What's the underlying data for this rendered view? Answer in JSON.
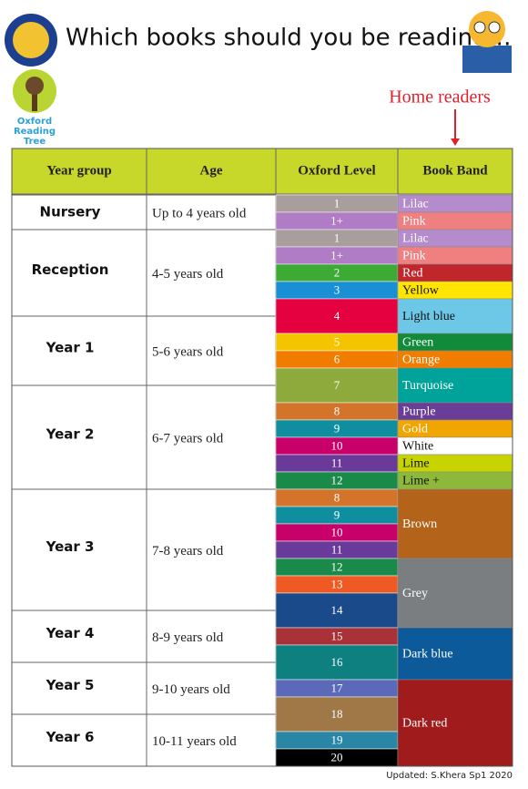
{
  "header": {
    "title": "Which books should you be reading…",
    "subtitle": "Home readers",
    "logo_text": [
      "Oxford",
      "Reading",
      "Tree"
    ]
  },
  "table": {
    "columns": [
      "Year group",
      "Age",
      "Oxford Level",
      "Book Band"
    ],
    "rows": [
      {
        "year": "Nursery",
        "age": "Up to 4 years old"
      },
      {
        "year": "Reception",
        "age": "4-5 years old"
      },
      {
        "year": "Year 1",
        "age": "5-6 years old"
      },
      {
        "year": "Year 2",
        "age": "6-7 years old"
      },
      {
        "year": "Year 3",
        "age": "7-8 years old"
      },
      {
        "year": "Year 4",
        "age": "8-9 years old"
      },
      {
        "year": "Year 5",
        "age": "9-10 years old"
      },
      {
        "year": "Year 6",
        "age": "10-11 years old"
      }
    ],
    "levels": [
      {
        "label": "1",
        "color": "#a89f9d"
      },
      {
        "label": "1+",
        "color": "#b07cc6"
      },
      {
        "label": "1",
        "color": "#a89f9d"
      },
      {
        "label": "1+",
        "color": "#b07cc6"
      },
      {
        "label": "2",
        "color": "#3daa35"
      },
      {
        "label": "3",
        "color": "#1a8fd6"
      },
      {
        "label": "4",
        "color": "#e5003f"
      },
      {
        "label": "5",
        "color": "#f5c400"
      },
      {
        "label": "6",
        "color": "#f07d00"
      },
      {
        "label": "7",
        "color": "#8faa3c"
      },
      {
        "label": "8",
        "color": "#d3742a"
      },
      {
        "label": "9",
        "color": "#0f8ea0"
      },
      {
        "label": "10",
        "color": "#c8006a"
      },
      {
        "label": "11",
        "color": "#6a3a9a"
      },
      {
        "label": "12",
        "color": "#1a8a4a"
      },
      {
        "label": "8",
        "color": "#d3742a"
      },
      {
        "label": "9",
        "color": "#0f8ea0"
      },
      {
        "label": "10",
        "color": "#c8006a"
      },
      {
        "label": "11",
        "color": "#6a3a9a"
      },
      {
        "label": "12",
        "color": "#1a8a4a"
      },
      {
        "label": "13",
        "color": "#ef5a24"
      },
      {
        "label": "14",
        "color": "#1a4a8a"
      },
      {
        "label": "15",
        "color": "#a83238"
      },
      {
        "label": "16",
        "color": "#0f8080"
      },
      {
        "label": "17",
        "color": "#5a6ab8"
      },
      {
        "label": "18",
        "color": "#a07848"
      },
      {
        "label": "19",
        "color": "#2a86a6"
      },
      {
        "label": "20",
        "color": "#000000"
      }
    ],
    "bands": [
      {
        "label": "Lilac",
        "color": "#b48ccc"
      },
      {
        "label": "Pink",
        "color": "#f08080"
      },
      {
        "label": "Lilac",
        "color": "#b48ccc"
      },
      {
        "label": "Pink",
        "color": "#f08080"
      },
      {
        "label": "Red",
        "color": "#c0272d"
      },
      {
        "label": "Yellow",
        "color": "#ffe500"
      },
      {
        "label": "Light blue",
        "color": "#6dc8e8"
      },
      {
        "label": "Green",
        "color": "#118a3a"
      },
      {
        "label": "Orange",
        "color": "#f07d00"
      },
      {
        "label": "Turquoise",
        "color": "#00a39a"
      },
      {
        "label": "Purple",
        "color": "#6a3d96"
      },
      {
        "label": "Gold",
        "color": "#f0a500"
      },
      {
        "label": "White",
        "color": "#ffffff"
      },
      {
        "label": "Lime",
        "color": "#c8d400"
      },
      {
        "label": "Lime +",
        "color": "#8db83a"
      },
      {
        "label": "Brown",
        "color": "#b4641a"
      },
      {
        "label": "Grey",
        "color": "#7a7e80"
      },
      {
        "label": "Dark blue",
        "color": "#0d5a9a"
      },
      {
        "label": "Dark red",
        "color": "#a01c1c"
      }
    ]
  },
  "footer": "Updated: S.Khera Sp1 2020"
}
